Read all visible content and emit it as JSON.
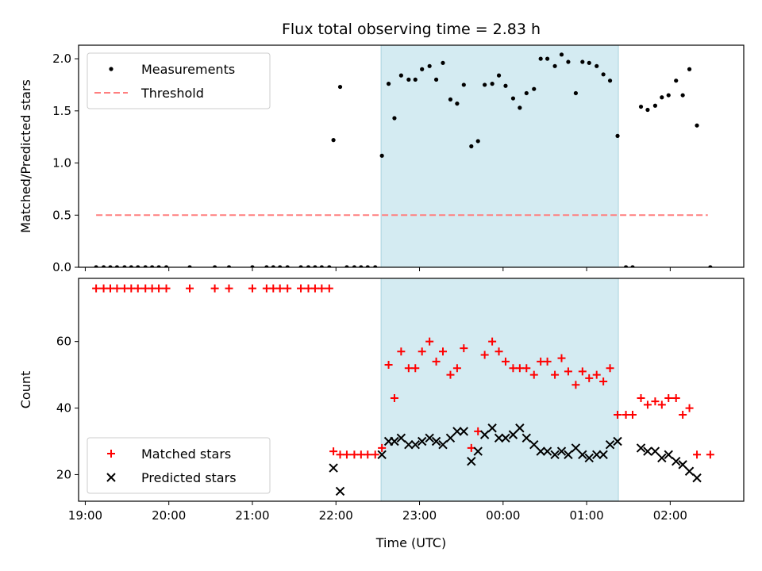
{
  "chart_data": [
    {
      "type": "scatter",
      "title": "Flux total observing time = 2.83 h",
      "xlabel": "",
      "ylabel": "Matched/Predicted stars",
      "xlim": [
        18.92,
        26.88
      ],
      "ylim": [
        0,
        2.13
      ],
      "yticks": [
        0.0,
        0.5,
        1.0,
        1.5,
        2.0
      ],
      "ytick_labels": [
        "0.0",
        "0.5",
        "1.0",
        "1.5",
        "2.0"
      ],
      "highlight_span": [
        22.54,
        25.38
      ],
      "highlight_color": "#d4ebf2",
      "legend_position": "upper-left",
      "series": [
        {
          "name": "Measurements",
          "marker": "dot",
          "color": "#000000",
          "points": [
            [
              19.13,
              0
            ],
            [
              19.22,
              0
            ],
            [
              19.3,
              0
            ],
            [
              19.38,
              0
            ],
            [
              19.47,
              0
            ],
            [
              19.55,
              0
            ],
            [
              19.63,
              0
            ],
            [
              19.72,
              0
            ],
            [
              19.8,
              0
            ],
            [
              19.88,
              0
            ],
            [
              19.97,
              0
            ],
            [
              20.25,
              0
            ],
            [
              20.55,
              0
            ],
            [
              20.72,
              0
            ],
            [
              21.0,
              0
            ],
            [
              21.17,
              0
            ],
            [
              21.25,
              0
            ],
            [
              21.33,
              0
            ],
            [
              21.42,
              0
            ],
            [
              21.58,
              0
            ],
            [
              21.67,
              0
            ],
            [
              21.75,
              0
            ],
            [
              21.83,
              0
            ],
            [
              21.92,
              0
            ],
            [
              21.97,
              1.22
            ],
            [
              22.05,
              1.73
            ],
            [
              22.13,
              0
            ],
            [
              22.22,
              0
            ],
            [
              22.3,
              0
            ],
            [
              22.38,
              0
            ],
            [
              22.47,
              0
            ],
            [
              22.55,
              1.07
            ],
            [
              22.63,
              1.76
            ],
            [
              22.7,
              1.43
            ],
            [
              22.78,
              1.84
            ],
            [
              22.87,
              1.8
            ],
            [
              22.95,
              1.8
            ],
            [
              23.03,
              1.9
            ],
            [
              23.12,
              1.93
            ],
            [
              23.2,
              1.8
            ],
            [
              23.28,
              1.96
            ],
            [
              23.37,
              1.61
            ],
            [
              23.45,
              1.57
            ],
            [
              23.53,
              1.75
            ],
            [
              23.62,
              1.16
            ],
            [
              23.7,
              1.21
            ],
            [
              23.78,
              1.75
            ],
            [
              23.87,
              1.76
            ],
            [
              23.95,
              1.84
            ],
            [
              24.03,
              1.74
            ],
            [
              24.12,
              1.62
            ],
            [
              24.2,
              1.53
            ],
            [
              24.28,
              1.67
            ],
            [
              24.37,
              1.71
            ],
            [
              24.45,
              2.0
            ],
            [
              24.53,
              2.0
            ],
            [
              24.62,
              1.93
            ],
            [
              24.7,
              2.04
            ],
            [
              24.78,
              1.97
            ],
            [
              24.87,
              1.67
            ],
            [
              24.95,
              1.97
            ],
            [
              25.03,
              1.96
            ],
            [
              25.12,
              1.93
            ],
            [
              25.2,
              1.85
            ],
            [
              25.28,
              1.79
            ],
            [
              25.37,
              1.26
            ],
            [
              25.47,
              0
            ],
            [
              25.55,
              0
            ],
            [
              25.65,
              1.54
            ],
            [
              25.73,
              1.51
            ],
            [
              25.82,
              1.55
            ],
            [
              25.9,
              1.63
            ],
            [
              25.98,
              1.65
            ],
            [
              26.07,
              1.79
            ],
            [
              26.15,
              1.65
            ],
            [
              26.23,
              1.9
            ],
            [
              26.32,
              1.36
            ],
            [
              26.48,
              0
            ]
          ]
        },
        {
          "name": "Threshold",
          "type": "line",
          "style": "dashed",
          "color": "#ff7f7f",
          "points": [
            [
              19.13,
              0.5
            ],
            [
              26.45,
              0.5
            ]
          ]
        }
      ]
    },
    {
      "type": "scatter",
      "xlabel": "Time (UTC)",
      "ylabel": "Count",
      "xlim": [
        18.92,
        26.88
      ],
      "ylim": [
        12,
        79
      ],
      "xticks": [
        19,
        20,
        21,
        22,
        23,
        24,
        25,
        26
      ],
      "xtick_labels": [
        "19:00",
        "20:00",
        "21:00",
        "22:00",
        "23:00",
        "00:00",
        "01:00",
        "02:00"
      ],
      "yticks": [
        20,
        40,
        60
      ],
      "ytick_labels": [
        "20",
        "40",
        "60"
      ],
      "highlight_span": [
        22.54,
        25.38
      ],
      "highlight_color": "#d4ebf2",
      "legend_position": "lower-left",
      "series": [
        {
          "name": "Matched stars",
          "marker": "plus",
          "color": "#ff0000",
          "points": [
            [
              19.13,
              76
            ],
            [
              19.22,
              76
            ],
            [
              19.3,
              76
            ],
            [
              19.38,
              76
            ],
            [
              19.47,
              76
            ],
            [
              19.55,
              76
            ],
            [
              19.63,
              76
            ],
            [
              19.72,
              76
            ],
            [
              19.8,
              76
            ],
            [
              19.88,
              76
            ],
            [
              19.97,
              76
            ],
            [
              20.25,
              76
            ],
            [
              20.55,
              76
            ],
            [
              20.72,
              76
            ],
            [
              21.0,
              76
            ],
            [
              21.17,
              76
            ],
            [
              21.25,
              76
            ],
            [
              21.33,
              76
            ],
            [
              21.42,
              76
            ],
            [
              21.58,
              76
            ],
            [
              21.67,
              76
            ],
            [
              21.75,
              76
            ],
            [
              21.83,
              76
            ],
            [
              21.92,
              76
            ],
            [
              21.97,
              27
            ],
            [
              22.05,
              26
            ],
            [
              22.13,
              26
            ],
            [
              22.22,
              26
            ],
            [
              22.3,
              26
            ],
            [
              22.38,
              26
            ],
            [
              22.47,
              26
            ],
            [
              22.55,
              28
            ],
            [
              22.63,
              53
            ],
            [
              22.7,
              43
            ],
            [
              22.78,
              57
            ],
            [
              22.87,
              52
            ],
            [
              22.95,
              52
            ],
            [
              23.03,
              57
            ],
            [
              23.12,
              60
            ],
            [
              23.2,
              54
            ],
            [
              23.28,
              57
            ],
            [
              23.37,
              50
            ],
            [
              23.45,
              52
            ],
            [
              23.53,
              58
            ],
            [
              23.62,
              28
            ],
            [
              23.7,
              33
            ],
            [
              23.78,
              56
            ],
            [
              23.87,
              60
            ],
            [
              23.95,
              57
            ],
            [
              24.03,
              54
            ],
            [
              24.12,
              52
            ],
            [
              24.2,
              52
            ],
            [
              24.28,
              52
            ],
            [
              24.37,
              50
            ],
            [
              24.45,
              54
            ],
            [
              24.53,
              54
            ],
            [
              24.62,
              50
            ],
            [
              24.7,
              55
            ],
            [
              24.78,
              51
            ],
            [
              24.87,
              47
            ],
            [
              24.95,
              51
            ],
            [
              25.03,
              49
            ],
            [
              25.12,
              50
            ],
            [
              25.2,
              48
            ],
            [
              25.28,
              52
            ],
            [
              25.37,
              38
            ],
            [
              25.47,
              38
            ],
            [
              25.55,
              38
            ],
            [
              25.65,
              43
            ],
            [
              25.73,
              41
            ],
            [
              25.82,
              42
            ],
            [
              25.9,
              41
            ],
            [
              25.98,
              43
            ],
            [
              26.07,
              43
            ],
            [
              26.15,
              38
            ],
            [
              26.23,
              40
            ],
            [
              26.32,
              26
            ],
            [
              26.48,
              26
            ]
          ]
        },
        {
          "name": "Predicted stars",
          "marker": "x",
          "color": "#000000",
          "points": [
            [
              21.97,
              22
            ],
            [
              22.05,
              15
            ],
            [
              22.55,
              26
            ],
            [
              22.63,
              30
            ],
            [
              22.7,
              30
            ],
            [
              22.78,
              31
            ],
            [
              22.87,
              29
            ],
            [
              22.95,
              29
            ],
            [
              23.03,
              30
            ],
            [
              23.12,
              31
            ],
            [
              23.2,
              30
            ],
            [
              23.28,
              29
            ],
            [
              23.37,
              31
            ],
            [
              23.45,
              33
            ],
            [
              23.53,
              33
            ],
            [
              23.62,
              24
            ],
            [
              23.7,
              27
            ],
            [
              23.78,
              32
            ],
            [
              23.87,
              34
            ],
            [
              23.95,
              31
            ],
            [
              24.03,
              31
            ],
            [
              24.12,
              32
            ],
            [
              24.2,
              34
            ],
            [
              24.28,
              31
            ],
            [
              24.37,
              29
            ],
            [
              24.45,
              27
            ],
            [
              24.53,
              27
            ],
            [
              24.62,
              26
            ],
            [
              24.7,
              27
            ],
            [
              24.78,
              26
            ],
            [
              24.87,
              28
            ],
            [
              24.95,
              26
            ],
            [
              25.03,
              25
            ],
            [
              25.12,
              26
            ],
            [
              25.2,
              26
            ],
            [
              25.28,
              29
            ],
            [
              25.37,
              30
            ],
            [
              25.65,
              28
            ],
            [
              25.73,
              27
            ],
            [
              25.82,
              27
            ],
            [
              25.9,
              25
            ],
            [
              25.98,
              26
            ],
            [
              26.07,
              24
            ],
            [
              26.15,
              23
            ],
            [
              26.23,
              21
            ],
            [
              26.32,
              19
            ]
          ]
        }
      ]
    }
  ]
}
